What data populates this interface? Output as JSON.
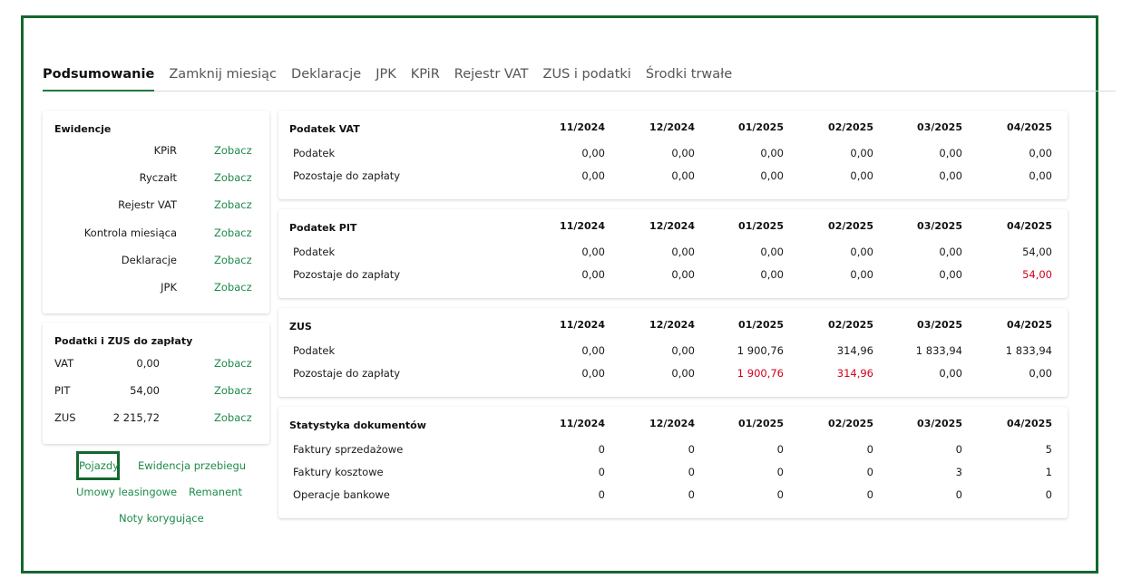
{
  "tabs": [
    {
      "label": "Podsumowanie",
      "active": true
    },
    {
      "label": "Zamknij miesiąc",
      "active": false
    },
    {
      "label": "Deklaracje",
      "active": false
    },
    {
      "label": "JPK",
      "active": false
    },
    {
      "label": "KPiR",
      "active": false
    },
    {
      "label": "Rejestr VAT",
      "active": false
    },
    {
      "label": "ZUS i podatki",
      "active": false
    },
    {
      "label": "Środki trwałe",
      "active": false
    }
  ],
  "ewidencje": {
    "title": "Ewidencje",
    "items": [
      {
        "label": "KPiR",
        "link": "Zobacz"
      },
      {
        "label": "Ryczałt",
        "link": "Zobacz"
      },
      {
        "label": "Rejestr VAT",
        "link": "Zobacz"
      },
      {
        "label": "Kontrola miesiąca",
        "link": "Zobacz"
      },
      {
        "label": "Deklaracje",
        "link": "Zobacz"
      },
      {
        "label": "JPK",
        "link": "Zobacz"
      }
    ]
  },
  "podatki": {
    "title": "Podatki i ZUS do zapłaty",
    "items": [
      {
        "name": "VAT",
        "value": "0,00",
        "link": "Zobacz"
      },
      {
        "name": "PIT",
        "value": "54,00",
        "link": "Zobacz"
      },
      {
        "name": "ZUS",
        "value": "2 215,72",
        "link": "Zobacz"
      }
    ]
  },
  "links": {
    "pojazdy": "Pojazdy",
    "ewidencja_przebiegu": "Ewidencja przebiegu",
    "umowy_leasingowe": "Umowy leasingowe",
    "remanent": "Remanent",
    "noty_korygujace": "Noty korygujące"
  },
  "months": [
    "11/2024",
    "12/2024",
    "01/2025",
    "02/2025",
    "03/2025",
    "04/2025"
  ],
  "tables": [
    {
      "title": "Podatek VAT",
      "rows": [
        {
          "label": "Podatek",
          "values": [
            "0,00",
            "0,00",
            "0,00",
            "0,00",
            "0,00",
            "0,00"
          ],
          "red": [
            false,
            false,
            false,
            false,
            false,
            false
          ]
        },
        {
          "label": "Pozostaje do zapłaty",
          "values": [
            "0,00",
            "0,00",
            "0,00",
            "0,00",
            "0,00",
            "0,00"
          ],
          "red": [
            false,
            false,
            false,
            false,
            false,
            false
          ]
        }
      ]
    },
    {
      "title": "Podatek PIT",
      "rows": [
        {
          "label": "Podatek",
          "values": [
            "0,00",
            "0,00",
            "0,00",
            "0,00",
            "0,00",
            "54,00"
          ],
          "red": [
            false,
            false,
            false,
            false,
            false,
            false
          ]
        },
        {
          "label": "Pozostaje do zapłaty",
          "values": [
            "0,00",
            "0,00",
            "0,00",
            "0,00",
            "0,00",
            "54,00"
          ],
          "red": [
            false,
            false,
            false,
            false,
            false,
            true
          ]
        }
      ]
    },
    {
      "title": "ZUS",
      "rows": [
        {
          "label": "Podatek",
          "values": [
            "0,00",
            "0,00",
            "1 900,76",
            "314,96",
            "1 833,94",
            "1 833,94"
          ],
          "red": [
            false,
            false,
            false,
            false,
            false,
            false
          ]
        },
        {
          "label": "Pozostaje do zapłaty",
          "values": [
            "0,00",
            "0,00",
            "1 900,76",
            "314,96",
            "0,00",
            "0,00"
          ],
          "red": [
            false,
            false,
            true,
            true,
            false,
            false
          ]
        }
      ]
    },
    {
      "title": "Statystyka dokumentów",
      "rows": [
        {
          "label": "Faktury sprzedażowe",
          "values": [
            "0",
            "0",
            "0",
            "0",
            "0",
            "5"
          ],
          "red": [
            false,
            false,
            false,
            false,
            false,
            false
          ]
        },
        {
          "label": "Faktury kosztowe",
          "values": [
            "0",
            "0",
            "0",
            "0",
            "3",
            "1"
          ],
          "red": [
            false,
            false,
            false,
            false,
            false,
            false
          ]
        },
        {
          "label": "Operacje bankowe",
          "values": [
            "0",
            "0",
            "0",
            "0",
            "0",
            "0"
          ],
          "red": [
            false,
            false,
            false,
            false,
            false,
            false
          ]
        }
      ]
    }
  ]
}
